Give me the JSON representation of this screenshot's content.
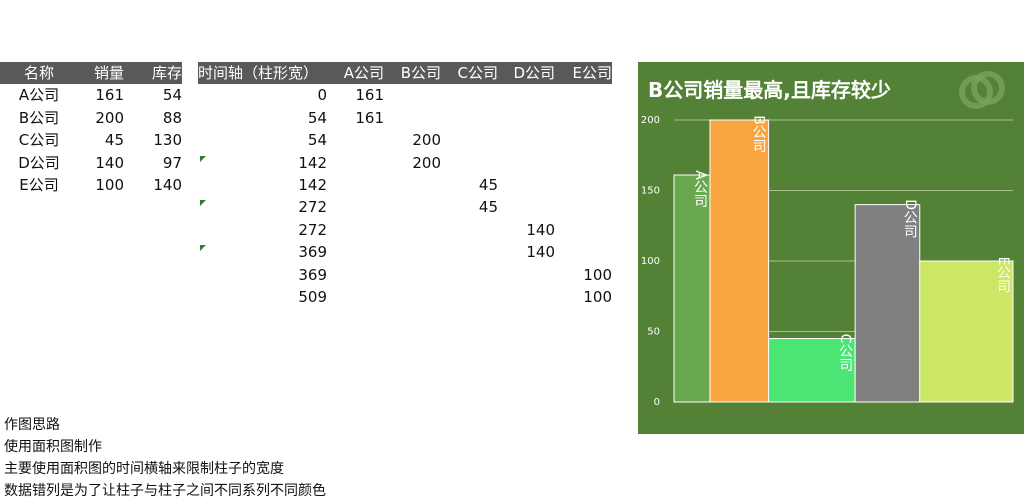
{
  "summary_table": {
    "headers": [
      "名称",
      "销量",
      "库存"
    ],
    "rows": [
      [
        "A公司",
        "161",
        "54"
      ],
      [
        "B公司",
        "200",
        "88"
      ],
      [
        "C公司",
        "45",
        "130"
      ],
      [
        "D公司",
        "140",
        "97"
      ],
      [
        "E公司",
        "100",
        "140"
      ]
    ]
  },
  "helper_table": {
    "headers": [
      "时间轴（柱形宽）",
      "A公司",
      "B公司",
      "C公司",
      "D公司",
      "E公司"
    ],
    "rows": [
      [
        "0",
        "161",
        "",
        "",
        "",
        ""
      ],
      [
        "54",
        "161",
        "",
        "",
        "",
        ""
      ],
      [
        "54",
        "",
        "200",
        "",
        "",
        ""
      ],
      [
        "142",
        "",
        "200",
        "",
        "",
        ""
      ],
      [
        "142",
        "",
        "",
        "45",
        "",
        ""
      ],
      [
        "272",
        "",
        "",
        "45",
        "",
        ""
      ],
      [
        "272",
        "",
        "",
        "",
        "140",
        ""
      ],
      [
        "369",
        "",
        "",
        "",
        "140",
        ""
      ],
      [
        "369",
        "",
        "",
        "",
        "",
        "100"
      ],
      [
        "509",
        "",
        "",
        "",
        "",
        "100"
      ]
    ],
    "error_marks": [
      false,
      false,
      false,
      true,
      false,
      true,
      false,
      true,
      false,
      false
    ]
  },
  "notes": [
    "作图思路",
    "使用面积图制作",
    "主要使用面积图的时间横轴来限制柱子的宽度",
    "数据错列是为了让柱子与柱子之间不同系列不同颜色"
  ],
  "colors": {
    "header_bg": "#595959",
    "chart_bg": "#538135",
    "gridline": "#a9c18f",
    "series": [
      "#6aa84f",
      "#f9a541",
      "#4be573",
      "#808080",
      "#cce665"
    ]
  },
  "chart_data": {
    "type": "area",
    "title": "B公司销量最高,且库存较少",
    "x_axis": "date-scaled width by 库存 (cumulative 0–509)",
    "ylim": [
      0,
      200
    ],
    "yticks": [
      "0",
      "50",
      "100",
      "150",
      "200"
    ],
    "grid": true,
    "series": [
      {
        "name": "A公司",
        "x": [
          0,
          54
        ],
        "value": 161,
        "label": "A公司"
      },
      {
        "name": "B公司",
        "x": [
          54,
          142
        ],
        "value": 200,
        "label": "B公司"
      },
      {
        "name": "C公司",
        "x": [
          142,
          272
        ],
        "value": 45,
        "label": "C公司"
      },
      {
        "name": "D公司",
        "x": [
          272,
          369
        ],
        "value": 140,
        "label": "D公司"
      },
      {
        "name": "E公司",
        "x": [
          369,
          509
        ],
        "value": 100,
        "label": "E公司"
      }
    ]
  }
}
